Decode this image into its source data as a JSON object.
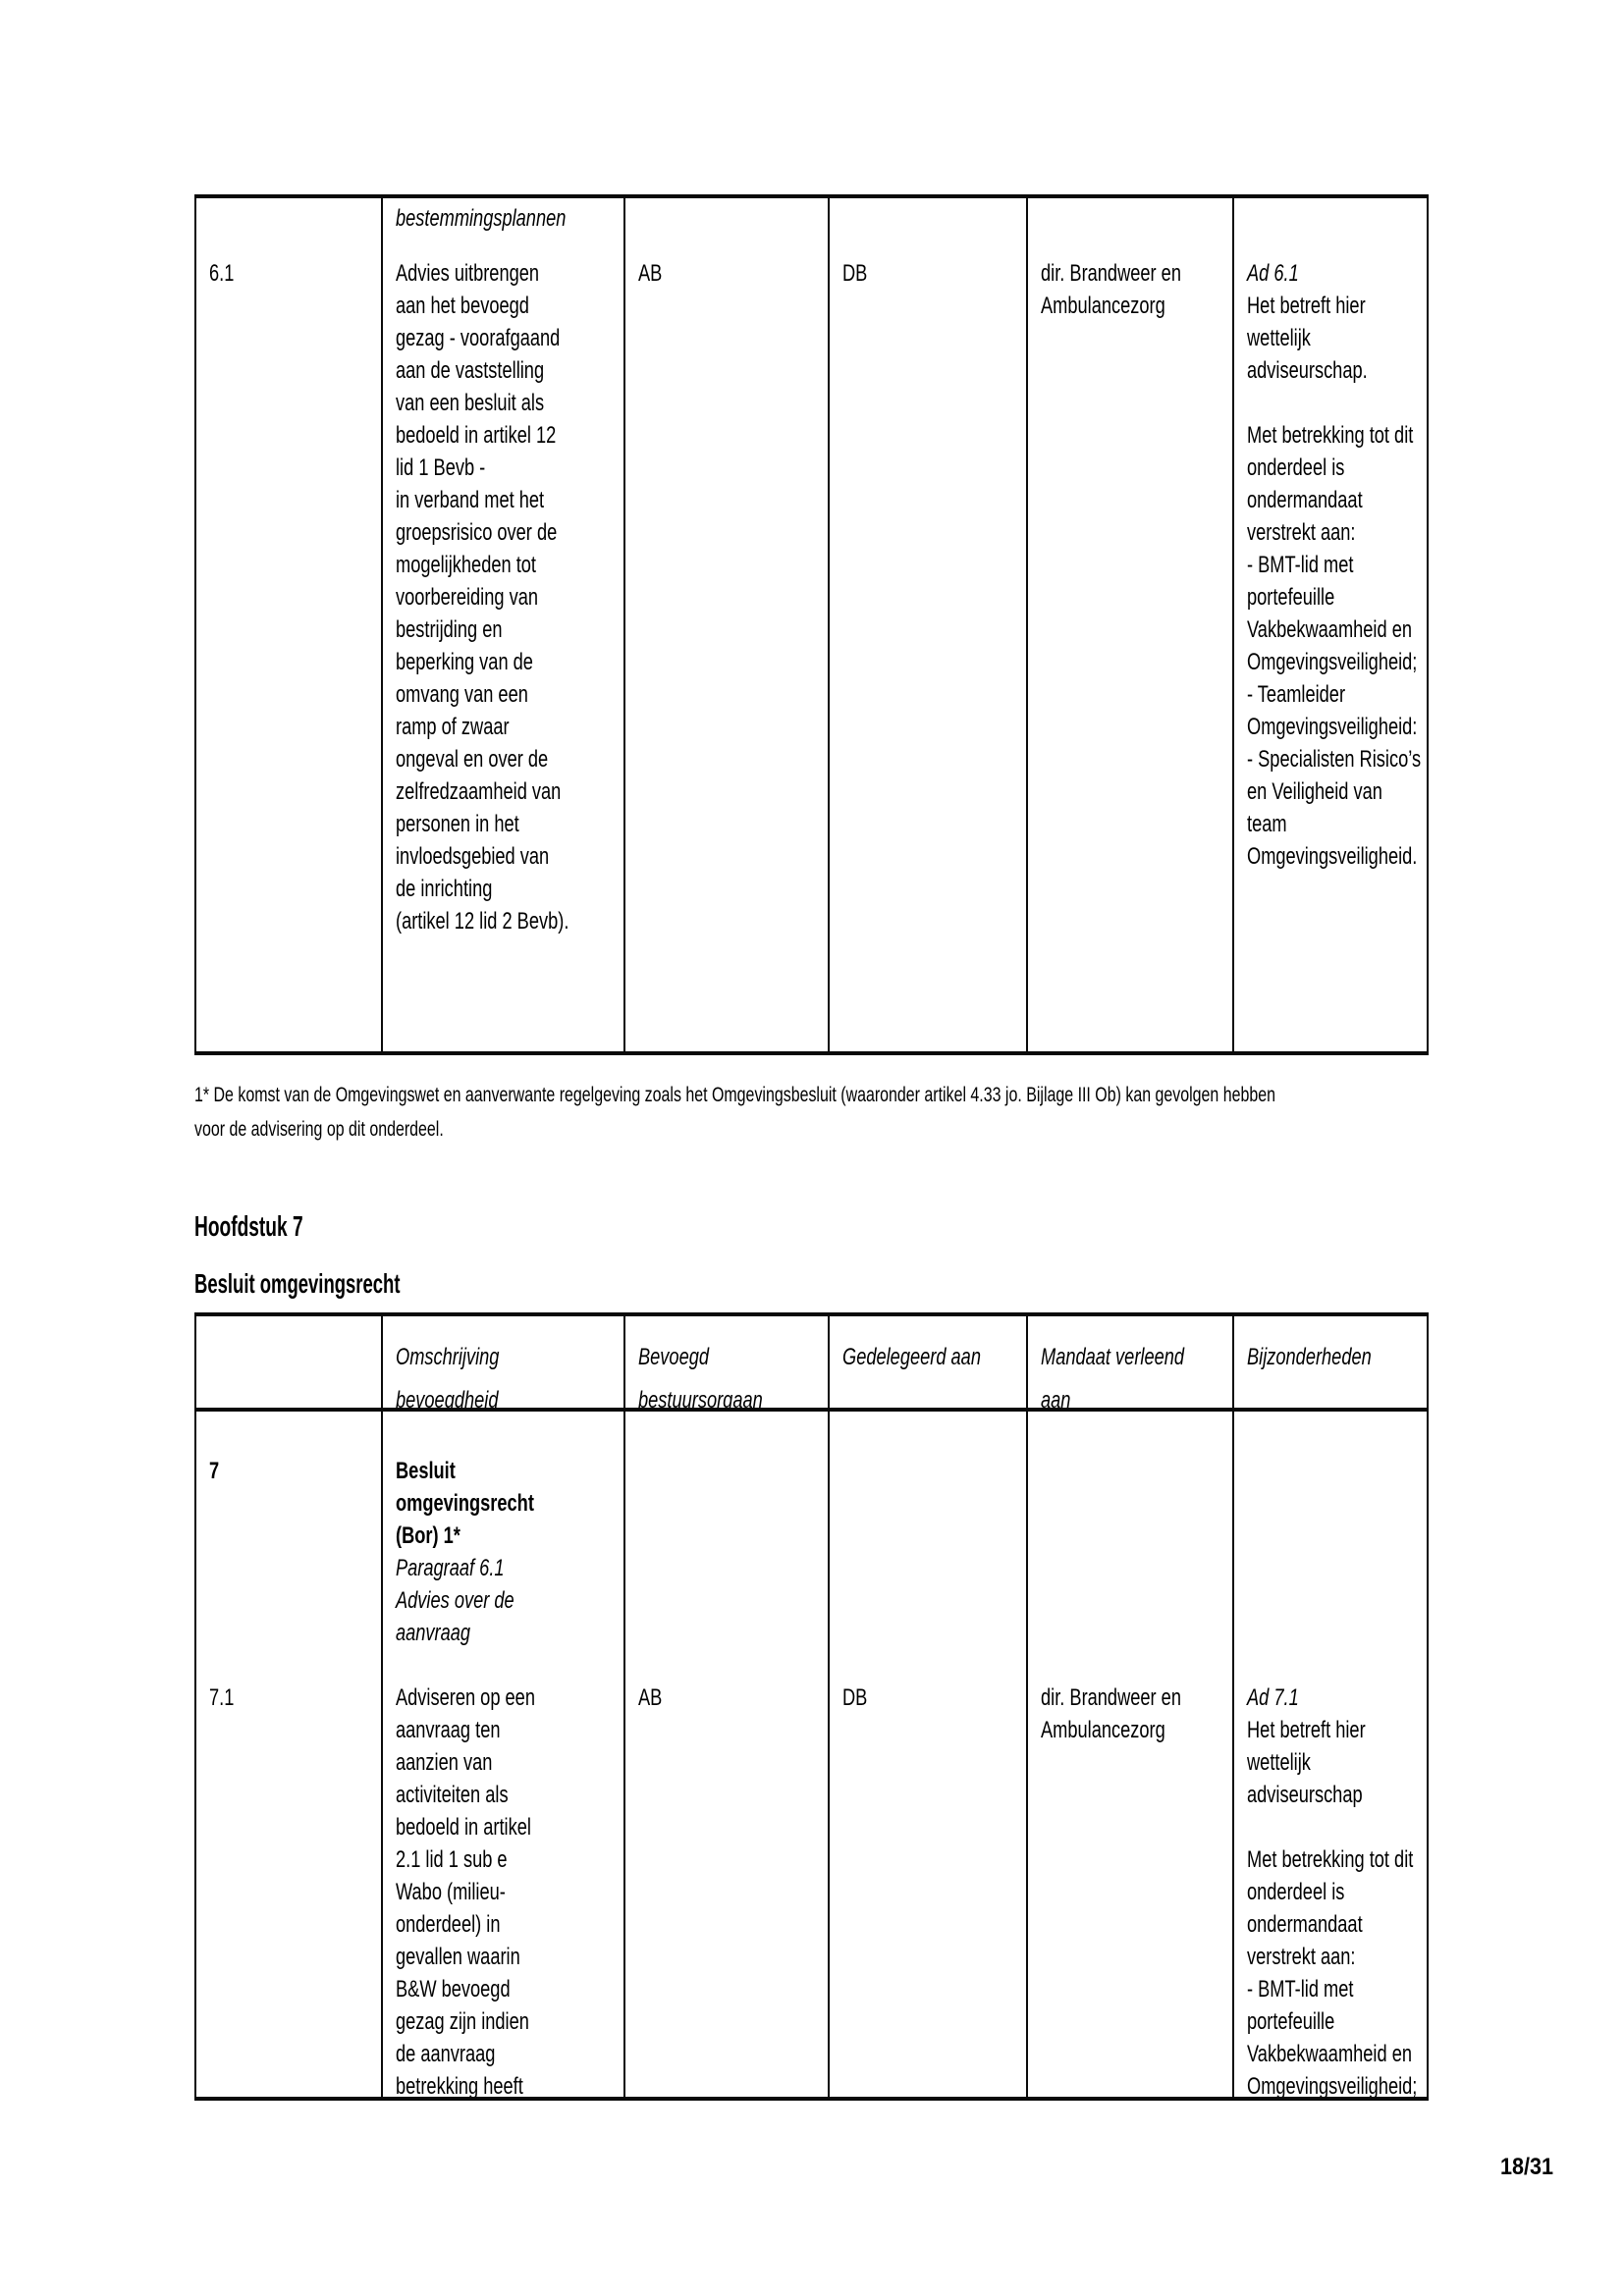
{
  "document": {
    "page_number": "18/31",
    "chapter_heading": "Hoofdstuk 7",
    "chapter_subheading": "Besluit omgevingsrecht",
    "footnote_lines": [
      "1* De komst van de Omgevingswet en aanverwante regelgeving zoals het Omgevingsbesluit (waaronder artikel 4.33 jo. Bijlage III Ob) kan gevolgen hebben",
      "voor de advisering op dit onderdeel."
    ]
  },
  "table1": {
    "cells": {
      "nr": [
        {
          "t": "",
          "s": "g"
        },
        "6.1"
      ],
      "omschrijving": [
        {
          "t": "bestemmingsplannen",
          "s": "ig"
        },
        "Advies uitbrengen",
        "aan het bevoegd",
        "gezag - voorafgaand",
        "aan de vaststelling",
        "van een besluit als",
        "bedoeld in artikel 12",
        "lid 1 Bevb -",
        "in verband met het",
        "groepsrisico over de",
        "mogelijkheden tot",
        "voorbereiding van",
        "bestrijding en",
        "beperking van de",
        "omvang van een",
        "ramp of zwaar",
        "ongeval en over de",
        "zelfredzaamheid van",
        "personen in het",
        "invloedsgebied van",
        "de inrichting",
        "(artikel 12 lid 2 Bevb)."
      ],
      "bevoegd": [
        {
          "t": "",
          "s": "g"
        },
        "AB"
      ],
      "gedelegeerd": [
        {
          "t": "",
          "s": "g"
        },
        "DB"
      ],
      "mandaat": [
        {
          "t": "",
          "s": "g"
        },
        "dir. Brandweer en",
        "Ambulancezorg"
      ],
      "bijzonderheden": [
        {
          "t": "",
          "s": "g"
        },
        {
          "t": "Ad 6.1",
          "s": "i"
        },
        "Het betreft hier",
        "wettelijk",
        "adviseurschap.",
        "",
        "Met betrekking tot dit",
        "onderdeel is",
        "ondermandaat",
        "verstrekt aan:",
        "- BMT-lid met",
        "portefeuille",
        "Vakbekwaamheid en",
        "Omgevingsveiligheid;",
        "- Teamleider",
        "Omgevingsveiligheid:",
        "- Specialisten Risico’s",
        "en Veiligheid van",
        "team",
        "Omgevingsveiligheid."
      ]
    }
  },
  "table2": {
    "header": {
      "nr": [],
      "omschrijving": [
        "Omschrijving",
        "bevoegdheid"
      ],
      "bevoegd": [
        "Bevoegd",
        "bestuursorgaan"
      ],
      "gedelegeerd": [
        "Gedelegeerd aan"
      ],
      "mandaat": [
        "Mandaat verleend",
        "aan"
      ],
      "bijzonderheden": [
        "Bijzonderheden"
      ]
    },
    "cells": {
      "nr": [
        {
          "t": "7",
          "s": "b"
        },
        "",
        "",
        "",
        "",
        "",
        "",
        "7.1"
      ],
      "omschrijving": [
        {
          "t": "Besluit",
          "s": "b"
        },
        {
          "t": "omgevingsrecht",
          "s": "b"
        },
        {
          "t": "(Bor) 1*",
          "s": "b"
        },
        {
          "t": "Paragraaf 6.1",
          "s": "i"
        },
        {
          "t": "Advies over de",
          "s": "i"
        },
        {
          "t": "aanvraag",
          "s": "i"
        },
        "",
        "Adviseren op een",
        "aanvraag ten",
        "aanzien van",
        "activiteiten als",
        "bedoeld in artikel",
        "2.1 lid 1 sub e",
        "Wabo (milieu-",
        "onderdeel) in",
        "gevallen waarin",
        "B&W bevoegd",
        "gezag zijn indien",
        "de aanvraag",
        "betrekking heeft"
      ],
      "bevoegd": [
        "",
        "",
        "",
        "",
        "",
        "",
        "",
        "AB"
      ],
      "gedelegeerd": [
        "",
        "",
        "",
        "",
        "",
        "",
        "",
        "DB"
      ],
      "mandaat": [
        "",
        "",
        "",
        "",
        "",
        "",
        "",
        "dir. Brandweer en",
        "Ambulancezorg"
      ],
      "bijzonderheden": [
        "",
        "",
        "",
        "",
        "",
        "",
        "",
        {
          "t": "Ad 7.1",
          "s": "i"
        },
        "Het betreft hier",
        "wettelijk",
        "adviseurschap",
        "",
        "Met betrekking tot dit",
        "onderdeel is",
        "ondermandaat",
        "verstrekt aan:",
        "- BMT-lid met",
        "portefeuille",
        "Vakbekwaamheid en",
        "Omgevingsveiligheid;"
      ]
    }
  }
}
